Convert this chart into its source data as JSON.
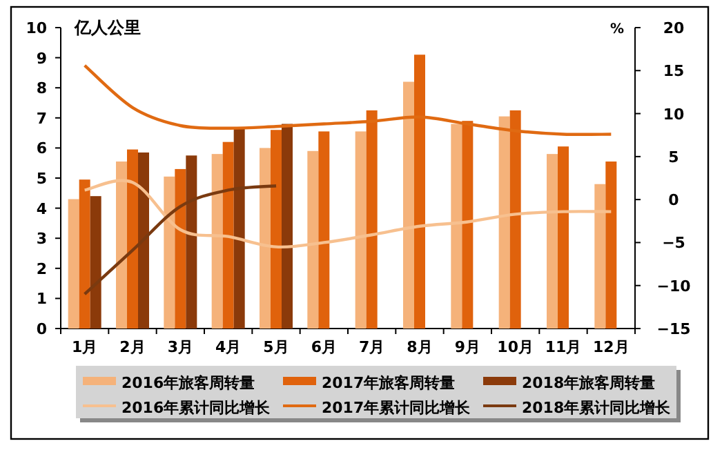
{
  "chart_data": {
    "type": "bar",
    "ylabel": "亿人公里",
    "y2label": "%",
    "categories": [
      "1月",
      "2月",
      "3月",
      "4月",
      "5月",
      "6月",
      "7月",
      "8月",
      "9月",
      "10月",
      "11月",
      "12月"
    ],
    "ylim": [
      0,
      10
    ],
    "yticks": [
      0,
      1,
      2,
      3,
      4,
      5,
      6,
      7,
      8,
      9,
      10
    ],
    "y2lim": [
      -15,
      20
    ],
    "y2ticks": [
      -15,
      -10,
      -5,
      0,
      5,
      10,
      15,
      20
    ],
    "legend": "bottom",
    "series": [
      {
        "name": "2016年旅客周转量",
        "color": "#f5b27a",
        "values": [
          4.3,
          5.55,
          5.05,
          5.8,
          6.0,
          5.9,
          6.55,
          8.2,
          6.8,
          7.05,
          5.8,
          4.8
        ]
      },
      {
        "name": "2017年旅客周转量",
        "color": "#e0620c",
        "values": [
          4.95,
          5.95,
          5.3,
          6.2,
          6.6,
          6.55,
          7.25,
          9.1,
          6.9,
          7.25,
          6.05,
          5.55
        ]
      },
      {
        "name": "2018年旅客周转量",
        "color": "#8b3a0a",
        "values": [
          4.4,
          5.85,
          5.75,
          6.65,
          6.8,
          null,
          null,
          null,
          null,
          null,
          null,
          null
        ]
      },
      {
        "name": "2016年累计同比增长",
        "type": "line",
        "axis": "y2",
        "color": "#f7c08f",
        "values": [
          1.1,
          2.0,
          -3.5,
          -4.3,
          -5.5,
          -5.0,
          -4.1,
          -3.1,
          -2.6,
          -1.7,
          -1.4,
          -1.4
        ]
      },
      {
        "name": "2017年累计同比增长",
        "type": "line",
        "axis": "y2",
        "color": "#e06a12",
        "values": [
          15.6,
          10.7,
          8.6,
          8.3,
          8.5,
          8.8,
          9.1,
          9.6,
          8.8,
          8.0,
          7.6,
          7.6
        ]
      },
      {
        "name": "2018年累计同比增长",
        "type": "line",
        "axis": "y2",
        "color": "#7a3a10",
        "values": [
          -11.0,
          -5.9,
          -0.8,
          1.1,
          1.6,
          null,
          null,
          null,
          null,
          null,
          null,
          null
        ]
      }
    ]
  }
}
